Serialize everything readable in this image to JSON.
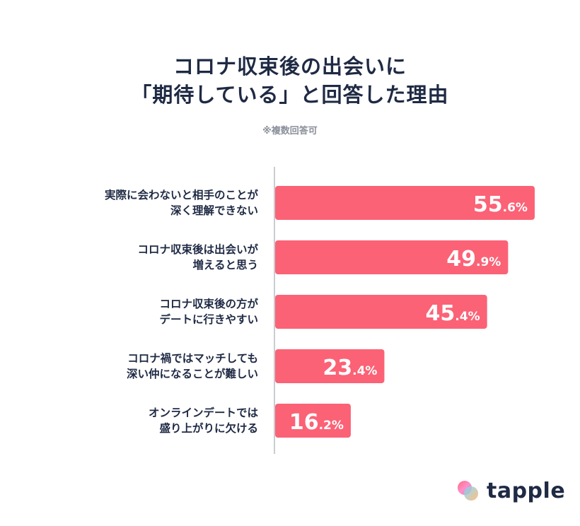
{
  "title": {
    "line1": "コロナ収束後の出会いに",
    "line2": "「期待している」と回答した理由"
  },
  "note": "※複数回答可",
  "brand": {
    "name": "tapple",
    "bar_color": "#fb6276",
    "text_color": "#1f2a44",
    "icon": "tapple-logo-icon"
  },
  "chart_data": {
    "type": "bar",
    "orientation": "horizontal",
    "unit": "%",
    "xlim": [
      0,
      100
    ],
    "grid": false,
    "categories": [
      [
        "実際に会わないと相手のことが",
        "深く理解できない"
      ],
      [
        "コロナ収束後は出会いが",
        "増えると思う"
      ],
      [
        "コロナ収束後の方が",
        "デートに行きやすい"
      ],
      [
        "コロナ禍ではマッチしても",
        "深い仲になることが難しい"
      ],
      [
        "オンラインデートでは",
        "盛り上がりに欠ける"
      ]
    ],
    "values": [
      55.6,
      49.9,
      45.4,
      23.4,
      16.2
    ]
  }
}
